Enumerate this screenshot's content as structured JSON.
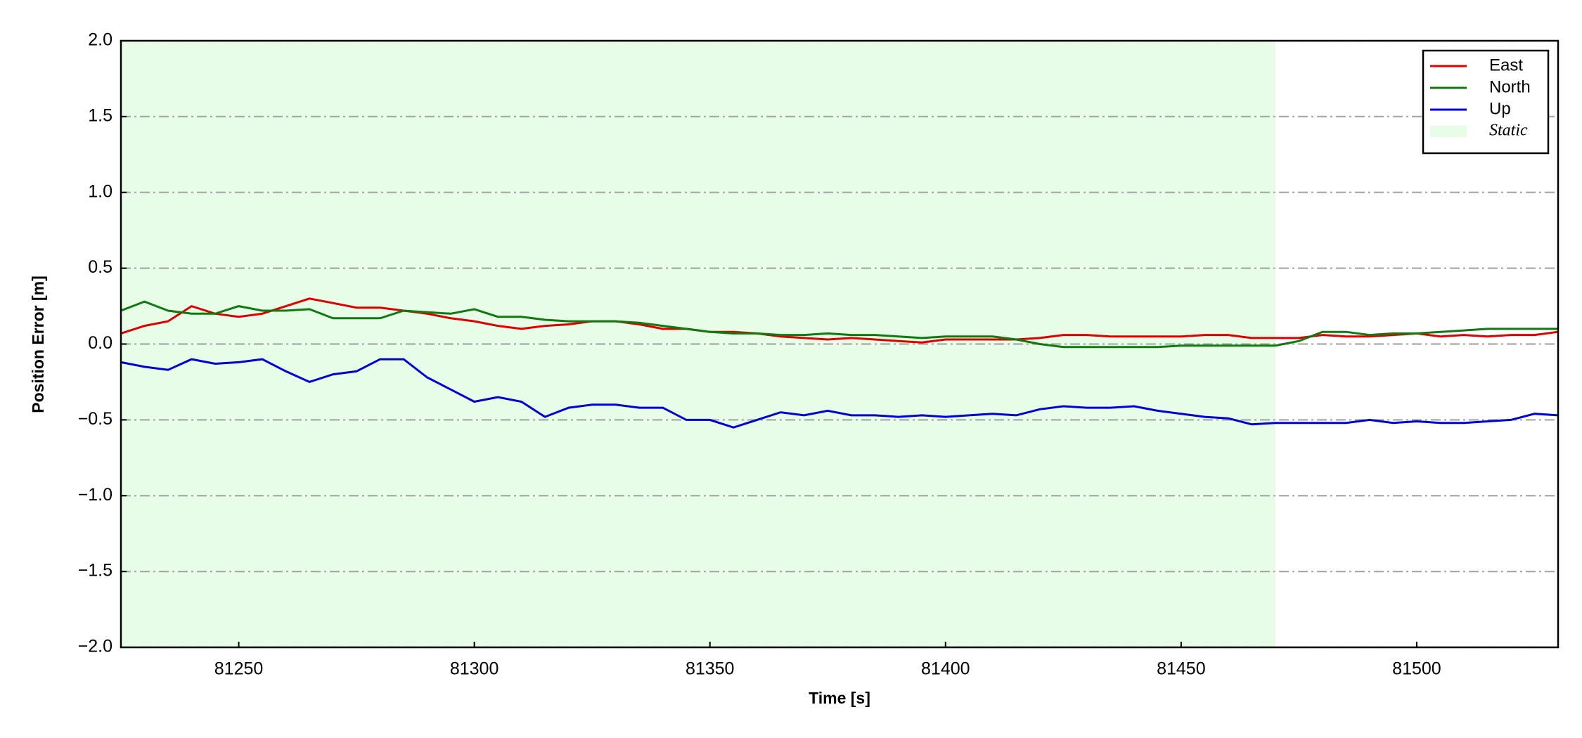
{
  "chart_data": {
    "type": "line",
    "xlabel": "Time [s]",
    "ylabel": "Position Error [m]",
    "x": [
      81225,
      81230,
      81235,
      81240,
      81245,
      81250,
      81255,
      81260,
      81265,
      81270,
      81275,
      81280,
      81285,
      81290,
      81295,
      81300,
      81305,
      81310,
      81315,
      81320,
      81325,
      81330,
      81335,
      81340,
      81345,
      81350,
      81355,
      81360,
      81365,
      81370,
      81375,
      81380,
      81385,
      81390,
      81395,
      81400,
      81405,
      81410,
      81415,
      81420,
      81425,
      81430,
      81435,
      81440,
      81445,
      81450,
      81455,
      81460,
      81465,
      81470,
      81475,
      81480,
      81485,
      81490,
      81495,
      81500,
      81505,
      81510,
      81515,
      81520,
      81525,
      81530
    ],
    "series": [
      {
        "name": "East",
        "color": "#e00000",
        "values": [
          0.07,
          0.12,
          0.15,
          0.25,
          0.2,
          0.18,
          0.2,
          0.25,
          0.3,
          0.27,
          0.24,
          0.24,
          0.22,
          0.2,
          0.17,
          0.15,
          0.12,
          0.1,
          0.12,
          0.13,
          0.15,
          0.15,
          0.13,
          0.1,
          0.1,
          0.08,
          0.08,
          0.07,
          0.05,
          0.04,
          0.03,
          0.04,
          0.03,
          0.02,
          0.01,
          0.03,
          0.03,
          0.03,
          0.03,
          0.04,
          0.06,
          0.06,
          0.05,
          0.05,
          0.05,
          0.05,
          0.06,
          0.06,
          0.04,
          0.04,
          0.04,
          0.06,
          0.05,
          0.05,
          0.06,
          0.07,
          0.05,
          0.06,
          0.05,
          0.06,
          0.06,
          0.08
        ]
      },
      {
        "name": "North",
        "color": "#107a10",
        "values": [
          0.22,
          0.28,
          0.22,
          0.2,
          0.2,
          0.25,
          0.22,
          0.22,
          0.23,
          0.17,
          0.17,
          0.17,
          0.22,
          0.21,
          0.2,
          0.23,
          0.18,
          0.18,
          0.16,
          0.15,
          0.15,
          0.15,
          0.14,
          0.12,
          0.1,
          0.08,
          0.07,
          0.07,
          0.06,
          0.06,
          0.07,
          0.06,
          0.06,
          0.05,
          0.04,
          0.05,
          0.05,
          0.05,
          0.03,
          0.0,
          -0.02,
          -0.02,
          -0.02,
          -0.02,
          -0.02,
          -0.01,
          -0.01,
          -0.01,
          -0.01,
          -0.01,
          0.02,
          0.08,
          0.08,
          0.06,
          0.07,
          0.07,
          0.08,
          0.09,
          0.1,
          0.1,
          0.1,
          0.1
        ]
      },
      {
        "name": "Up",
        "color": "#0000d8",
        "values": [
          -0.12,
          -0.15,
          -0.17,
          -0.1,
          -0.13,
          -0.12,
          -0.1,
          -0.18,
          -0.25,
          -0.2,
          -0.18,
          -0.1,
          -0.1,
          -0.22,
          -0.3,
          -0.38,
          -0.35,
          -0.38,
          -0.48,
          -0.42,
          -0.4,
          -0.4,
          -0.42,
          -0.42,
          -0.5,
          -0.5,
          -0.55,
          -0.5,
          -0.45,
          -0.47,
          -0.44,
          -0.47,
          -0.47,
          -0.48,
          -0.47,
          -0.48,
          -0.47,
          -0.46,
          -0.47,
          -0.43,
          -0.41,
          -0.42,
          -0.42,
          -0.41,
          -0.44,
          -0.46,
          -0.48,
          -0.49,
          -0.53,
          -0.52,
          -0.52,
          -0.52,
          -0.52,
          -0.5,
          -0.52,
          -0.51,
          -0.52,
          -0.52,
          -0.51,
          -0.5,
          -0.46,
          -0.47
        ]
      }
    ],
    "span": {
      "name": "Static",
      "xlim": [
        81225,
        81470
      ],
      "color": "#e8fde8"
    },
    "xlim": [
      81225,
      81530
    ],
    "xticks": [
      81250,
      81300,
      81350,
      81400,
      81450,
      81500
    ],
    "ylim": [
      -2,
      2
    ],
    "yticks": [
      {
        "value": -2,
        "label": "−2.0"
      },
      {
        "value": -1.5,
        "label": "−1.5"
      },
      {
        "value": -1,
        "label": "−1.0"
      },
      {
        "value": -0.5,
        "label": "−0.5"
      },
      {
        "value": 0,
        "label": "0.0"
      },
      {
        "value": 0.5,
        "label": "0.5"
      },
      {
        "value": 1,
        "label": "1.0"
      },
      {
        "value": 1.5,
        "label": "1.5"
      },
      {
        "value": 2,
        "label": "2.0"
      }
    ],
    "grid": true,
    "legend": "upper right"
  }
}
